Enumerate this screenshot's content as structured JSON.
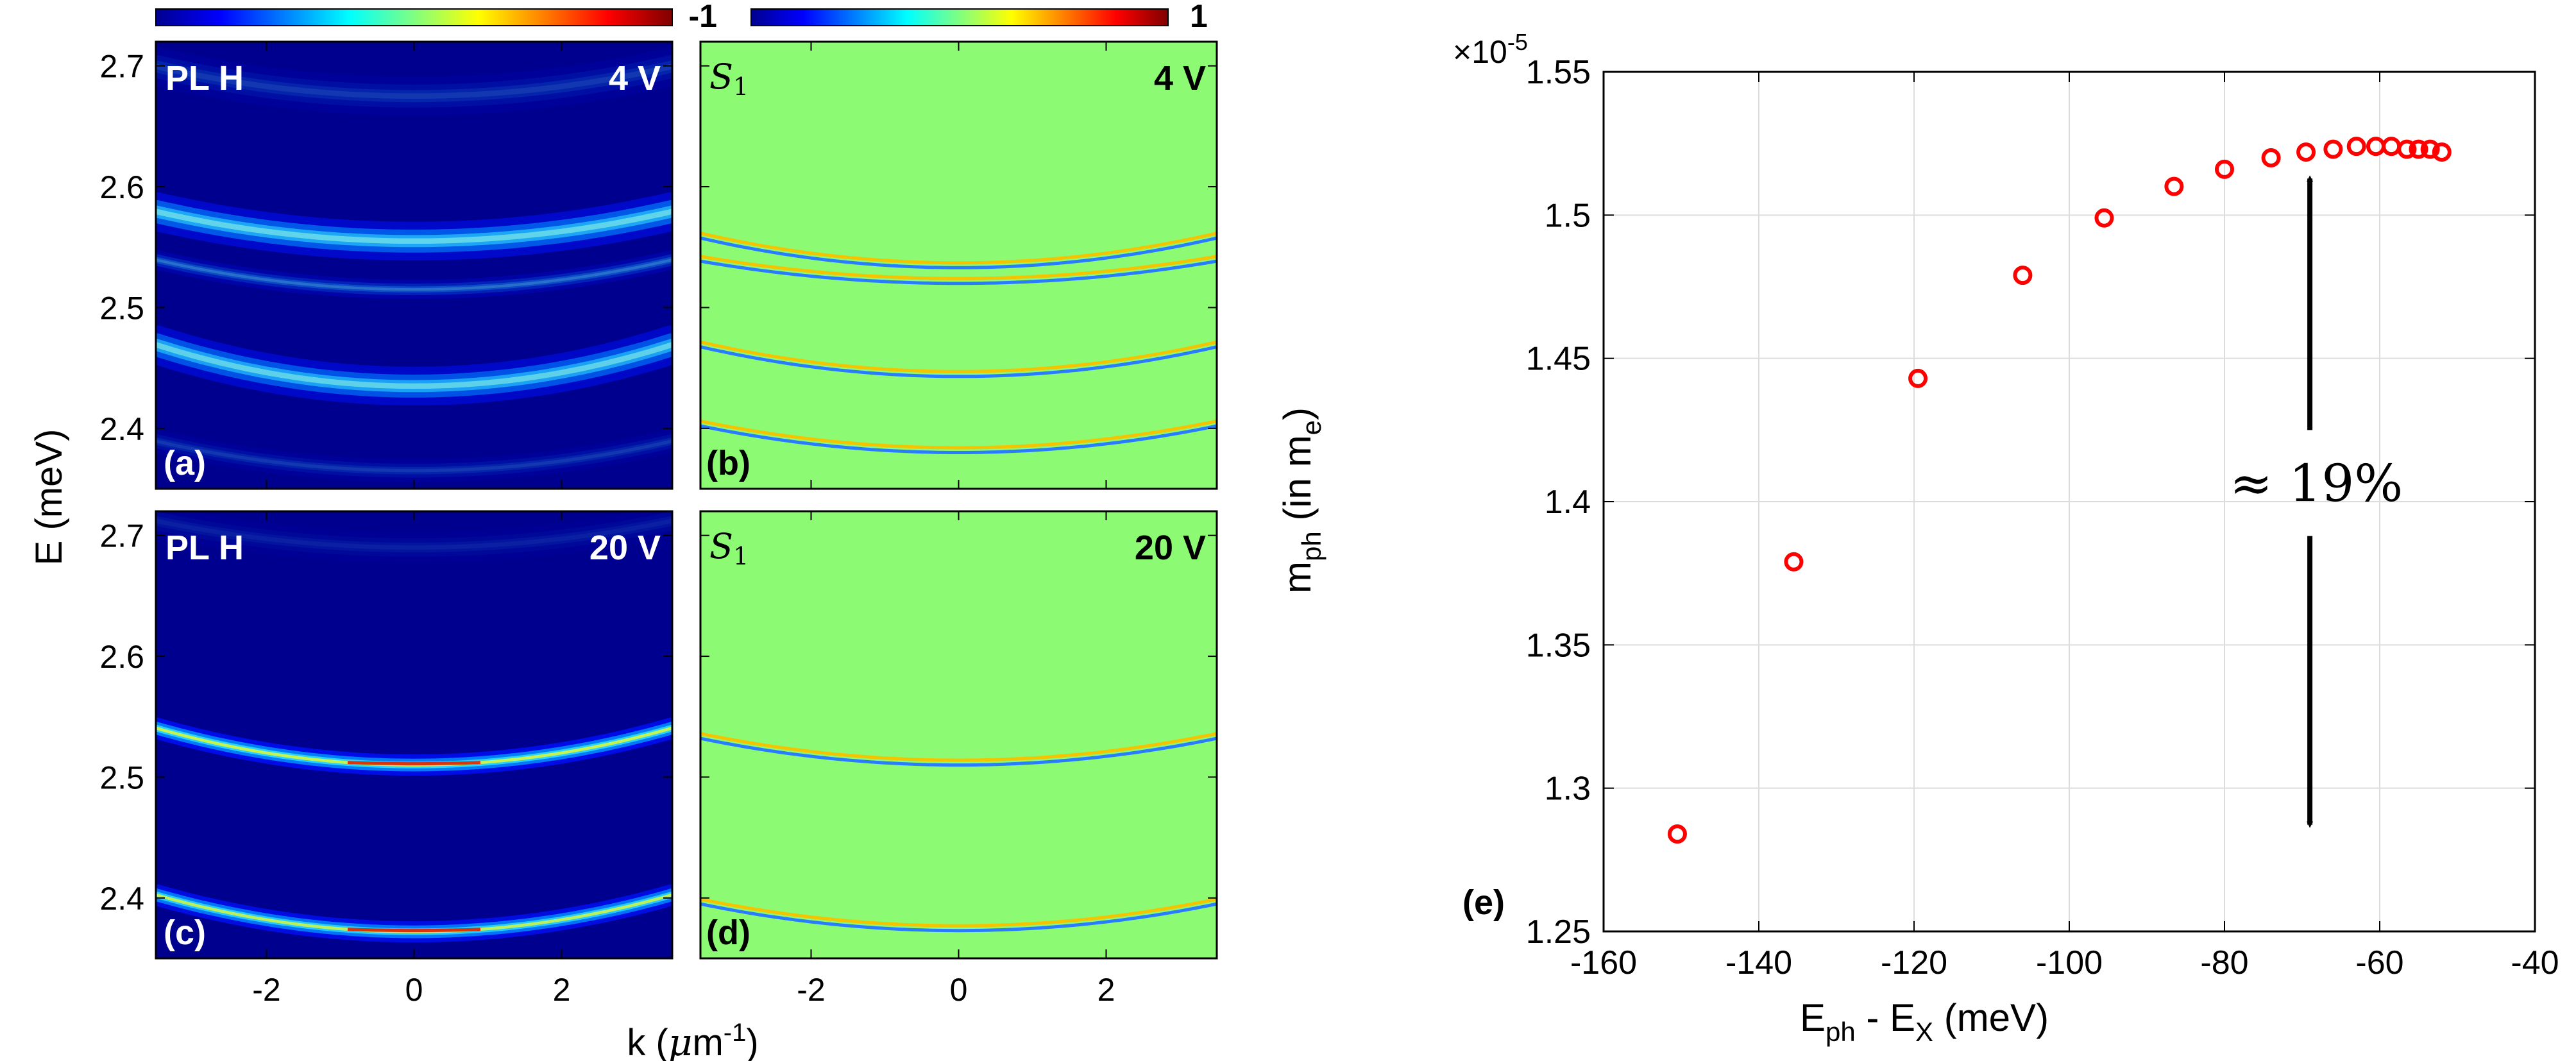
{
  "figure": {
    "colorbar_left": {
      "tick_labels": []
    },
    "colorbar_right": {
      "tick_labels": [
        "-1",
        "1"
      ]
    },
    "shared_axes": {
      "ylabel": "E (meV)",
      "xlabel_main": "k (",
      "xlabel_mu": "μ",
      "xlabel_unit": "m",
      "xlabel_sup": "-1",
      "xlabel_close": ")"
    },
    "panels": [
      {
        "id": "a",
        "tag": "(a)",
        "title": "PL H",
        "voltage": "4 V",
        "kind": "pl"
      },
      {
        "id": "b",
        "tag": "(b)",
        "title_main": "S",
        "title_sub": "1",
        "voltage": "4 V",
        "kind": "stokes"
      },
      {
        "id": "c",
        "tag": "(c)",
        "title": "PL H",
        "voltage": "20 V",
        "kind": "pl"
      },
      {
        "id": "d",
        "tag": "(d)",
        "title_main": "S",
        "title_sub": "1",
        "voltage": "20 V",
        "kind": "stokes"
      }
    ],
    "panel_e": {
      "tag": "(e)",
      "annotation": "≈ 19%",
      "exponent_prefix": "×10",
      "exponent_sup": "-5"
    }
  },
  "chart_data": [
    {
      "type": "heatmap",
      "panel": "(a)",
      "title": "PL H 4 V",
      "xlabel": "k (μm-1)",
      "ylabel": "E (meV)",
      "xlim": [
        -3.5,
        3.5
      ],
      "ylim": [
        2.35,
        2.72
      ],
      "x_ticks": [
        -2,
        0,
        2
      ],
      "y_ticks": [
        2.4,
        2.5,
        2.6,
        2.7
      ],
      "colormap": "jet",
      "modes": [
        {
          "e0": 2.555,
          "curv": 0.002,
          "width": 0.01,
          "amp": 0.58
        },
        {
          "e0": 2.515,
          "curv": 0.002,
          "width": 0.005,
          "amp": 0.22
        },
        {
          "e0": 2.435,
          "curv": 0.0028,
          "width": 0.01,
          "amp": 0.55
        },
        {
          "e0": 2.675,
          "curv": 0.002,
          "width": 0.01,
          "amp": 0.1
        },
        {
          "e0": 2.365,
          "curv": 0.002,
          "width": 0.006,
          "amp": 0.1
        }
      ]
    },
    {
      "type": "heatmap",
      "panel": "(b)",
      "title": "S1 4 V",
      "xlabel": "k (μm-1)",
      "ylabel": "E (meV)",
      "xlim": [
        -3.5,
        3.5
      ],
      "ylim": [
        2.35,
        2.72
      ],
      "x_ticks": [
        -2,
        0,
        2
      ],
      "y_ticks": [
        2.4,
        2.5,
        2.6,
        2.7
      ],
      "colormap": "jet",
      "clim": [
        -1,
        1
      ],
      "modes": [
        {
          "e0": 2.535,
          "curv": 0.002
        },
        {
          "e0": 2.522,
          "curv": 0.0015
        },
        {
          "e0": 2.445,
          "curv": 0.002
        },
        {
          "e0": 2.382,
          "curv": 0.0018
        }
      ]
    },
    {
      "type": "heatmap",
      "panel": "(c)",
      "title": "PL H 20 V",
      "xlabel": "k (μm-1)",
      "ylabel": "E (meV)",
      "xlim": [
        -3.5,
        3.5
      ],
      "ylim": [
        2.35,
        2.72
      ],
      "x_ticks": [
        -2,
        0,
        2
      ],
      "y_ticks": [
        2.4,
        2.5,
        2.6,
        2.7
      ],
      "colormap": "jet",
      "modes": [
        {
          "e0": 2.51,
          "curv": 0.0025,
          "width": 0.0055,
          "amp": 0.85
        },
        {
          "e0": 2.372,
          "curv": 0.0025,
          "width": 0.0055,
          "amp": 0.8
        },
        {
          "e0": 2.69,
          "curv": 0.0018,
          "width": 0.008,
          "amp": 0.06
        }
      ]
    },
    {
      "type": "heatmap",
      "panel": "(d)",
      "title": "S1 20 V",
      "xlabel": "k (μm-1)",
      "ylabel": "E (meV)",
      "xlim": [
        -3.5,
        3.5
      ],
      "ylim": [
        2.35,
        2.72
      ],
      "x_ticks": [
        -2,
        0,
        2
      ],
      "y_ticks": [
        2.4,
        2.5,
        2.6,
        2.7
      ],
      "colormap": "jet",
      "clim": [
        -1,
        1
      ],
      "modes": [
        {
          "e0": 2.512,
          "curv": 0.0018
        },
        {
          "e0": 2.375,
          "curv": 0.0018
        }
      ]
    },
    {
      "type": "scatter",
      "panel": "(e)",
      "xlabel": "Eph - EX (meV)",
      "ylabel": "mph (in me)",
      "xlim": [
        -160,
        -40
      ],
      "ylim": [
        1.25,
        1.55
      ],
      "y_multiplier": "1e-5",
      "grid": true,
      "marker": "open circle",
      "color": "#ff0000",
      "x_ticks": [
        -160,
        -140,
        -120,
        -100,
        -80,
        -60,
        -40
      ],
      "y_ticks": [
        1.25,
        1.3,
        1.35,
        1.4,
        1.45,
        1.5,
        1.55
      ],
      "x": [
        -150.5,
        -135.5,
        -119.5,
        -106.0,
        -95.5,
        -86.5,
        -80.0,
        -74.0,
        -69.5,
        -66.0,
        -63.0,
        -60.5,
        -58.5,
        -56.5,
        -55.0,
        -53.5,
        -52.0
      ],
      "y": [
        1.284,
        1.379,
        1.443,
        1.479,
        1.499,
        1.51,
        1.516,
        1.52,
        1.522,
        1.523,
        1.524,
        1.524,
        1.524,
        1.523,
        1.523,
        1.523,
        1.522
      ],
      "annotation": {
        "text": "≈ 19%",
        "arrow_x": -69,
        "arrow_from": 1.425,
        "arrow_to_top": 1.515,
        "arrow_from_low": 1.388,
        "arrow_to_bottom": 1.285
      }
    }
  ],
  "colors": {
    "marker": "#ff0000",
    "axis": "#000000",
    "grid": "#dcdcdc",
    "pl_background": "#00008f",
    "s1_background": "#8cfa73"
  }
}
